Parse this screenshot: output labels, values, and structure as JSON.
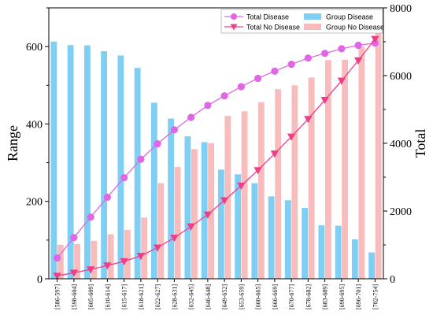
{
  "chart_data": {
    "type": "bar",
    "xlabel": "",
    "ylabel": "Range",
    "y2label": "Total",
    "ylim": [
      0,
      700
    ],
    "y2lim": [
      0,
      8000
    ],
    "yticks": [
      "0",
      "200",
      "400",
      "600"
    ],
    "y2ticks": [
      "0",
      "2000",
      "4000",
      "6000",
      "8000"
    ],
    "categories": [
      "[586-597]",
      "[598-604]",
      "[605-609]",
      "[610-614]",
      "[615-617]",
      "[618-621]",
      "[622-627]",
      "[628-631]",
      "[632-645]",
      "[646-648]",
      "[649-652]",
      "[653-659]",
      "[660-665]",
      "[666-669]",
      "[670-677]",
      "[678-682]",
      "[683-689]",
      "[690-695]",
      "[696-701]",
      "[702-754]"
    ],
    "series": [
      {
        "name": "Group Disease",
        "kind": "bar",
        "axis": "left",
        "color": "#7fcff4",
        "values": [
          613,
          604,
          603,
          588,
          577,
          545,
          455,
          414,
          368,
          353,
          282,
          270,
          247,
          213,
          203,
          183,
          138,
          137,
          102,
          68
        ]
      },
      {
        "name": "Group No Disease",
        "kind": "bar",
        "axis": "left",
        "color": "#f8bcbc",
        "values": [
          88,
          90,
          98,
          115,
          126,
          158,
          247,
          289,
          335,
          350,
          421,
          433,
          456,
          490,
          500,
          520,
          565,
          566,
          600,
          635
        ]
      },
      {
        "name": "Total Disease",
        "kind": "line",
        "axis": "right",
        "color": "#e066e6",
        "marker": "circle",
        "values": [
          613,
          1217,
          1820,
          2408,
          2985,
          3530,
          3985,
          4399,
          4767,
          5120,
          5402,
          5672,
          5919,
          6132,
          6335,
          6518,
          6656,
          6793,
          6895,
          6963
        ]
      },
      {
        "name": "Total No Disease",
        "kind": "line",
        "axis": "right",
        "color": "#ef3d8a",
        "marker": "triangle-down",
        "values": [
          88,
          178,
          276,
          391,
          517,
          675,
          922,
          1211,
          1546,
          1896,
          2317,
          2750,
          3206,
          3696,
          4196,
          4716,
          5281,
          5847,
          6447,
          7082
        ]
      }
    ],
    "legend": "top-right",
    "grid": false
  }
}
